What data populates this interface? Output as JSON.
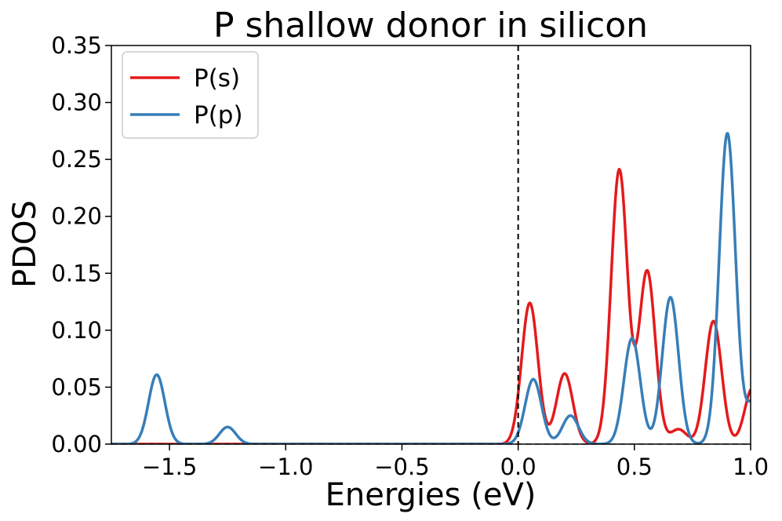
{
  "chart_data": {
    "type": "line",
    "title": "P shallow donor in silicon",
    "xlabel": "Energies (eV)",
    "ylabel": "PDOS",
    "xlim": [
      -1.75,
      1.0
    ],
    "ylim": [
      0.0,
      0.35
    ],
    "xticks": [
      -1.5,
      -1.0,
      -0.5,
      0.0,
      0.5,
      1.0
    ],
    "xtick_labels": [
      "−1.5",
      "−1.0",
      "−0.5",
      "0.0",
      "0.5",
      "1.0"
    ],
    "yticks": [
      0.0,
      0.05,
      0.1,
      0.15,
      0.2,
      0.25,
      0.3,
      0.35
    ],
    "ytick_labels": [
      "0.00",
      "0.05",
      "0.10",
      "0.15",
      "0.20",
      "0.25",
      "0.30",
      "0.35"
    ],
    "grid": false,
    "legend_position": "top-left",
    "vertical_line_x": 0.0,
    "horizontal_line_y": 0.0,
    "series": [
      {
        "name": "P(s)",
        "color": "#e41a1c",
        "peaks": [
          {
            "center": 0.05,
            "height": 0.124
          },
          {
            "center": 0.2,
            "height": 0.062
          },
          {
            "center": 0.435,
            "height": 0.241
          },
          {
            "center": 0.555,
            "height": 0.152
          },
          {
            "center": 0.69,
            "height": 0.013
          },
          {
            "center": 0.84,
            "height": 0.108
          },
          {
            "center": 1.01,
            "height": 0.05
          }
        ],
        "sigma": 0.035
      },
      {
        "name": "P(p)",
        "color": "#377eb8",
        "peaks": [
          {
            "center": -1.555,
            "height": 0.061
          },
          {
            "center": -1.25,
            "height": 0.015
          },
          {
            "center": 0.065,
            "height": 0.057
          },
          {
            "center": 0.225,
            "height": 0.025
          },
          {
            "center": 0.49,
            "height": 0.093
          },
          {
            "center": 0.655,
            "height": 0.129
          },
          {
            "center": 0.9,
            "height": 0.273
          },
          {
            "center": 1.02,
            "height": 0.04
          }
        ],
        "sigma": 0.035
      }
    ]
  }
}
